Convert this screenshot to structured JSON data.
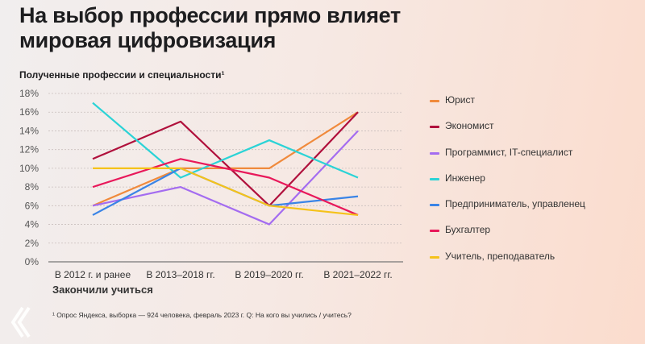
{
  "title_line1": "На выбор профессии прямо влияет",
  "title_line2": "мировая цифровизация",
  "footnote": "¹ Опрос Яндекса, выборка — 924 человека, февраль 2023 г. Q: На кого вы учились / учитесь?",
  "chart_data": {
    "type": "line",
    "title": "Полученные профессии и специальности¹",
    "xlabel": "Закончили учиться",
    "ylabel": "",
    "categories": [
      "В 2012 г. и ранее",
      "В 2013–2018 гг.",
      "В 2019–2020 гг.",
      "В 2021–2022 гг."
    ],
    "ylim": [
      0,
      18
    ],
    "yticks": [
      "0%",
      "2%",
      "4%",
      "6%",
      "8%",
      "10%",
      "12%",
      "14%",
      "16%",
      "18%"
    ],
    "grid": true,
    "legend_position": "right",
    "series": [
      {
        "name": "Юрист",
        "color": "#f08a3c",
        "values": [
          6,
          10,
          10,
          16
        ]
      },
      {
        "name": "Экономист",
        "color": "#b0103c",
        "values": [
          11,
          15,
          6,
          16
        ]
      },
      {
        "name": "Программист, IT-специалист",
        "color": "#a46cf0",
        "values": [
          6,
          8,
          4,
          14
        ]
      },
      {
        "name": "Инженер",
        "color": "#2bd3d6",
        "values": [
          17,
          9,
          13,
          9
        ]
      },
      {
        "name": "Предприниматель, управленец",
        "color": "#3a84e6",
        "values": [
          5,
          10,
          6,
          7
        ]
      },
      {
        "name": "Бухгалтер",
        "color": "#e8185a",
        "values": [
          8,
          11,
          9,
          5
        ]
      },
      {
        "name": "Учитель, преподаватель",
        "color": "#f5c21a",
        "values": [
          10,
          10,
          6,
          5
        ]
      }
    ]
  }
}
